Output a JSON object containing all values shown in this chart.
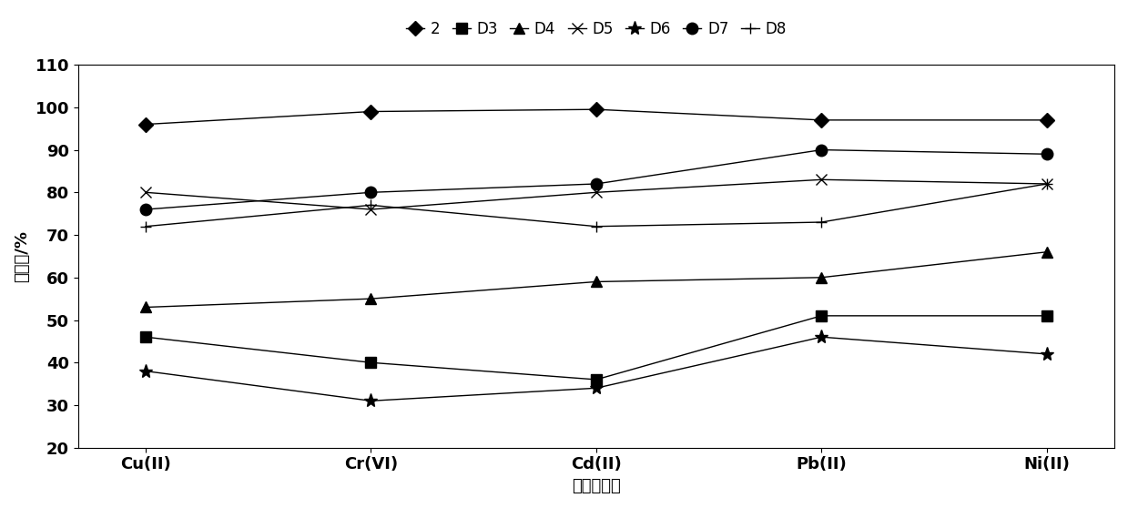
{
  "categories": [
    "Cu(II)",
    "Cr(VI)",
    "Cd(II)",
    "Pb(II)",
    "Ni(II)"
  ],
  "series": [
    {
      "label": "2",
      "marker": "D",
      "values": [
        96,
        99,
        99.5,
        97,
        97
      ],
      "color": "#000000",
      "linestyle": "-",
      "markersize": 8,
      "markerfacecolor": "#000000"
    },
    {
      "label": "D3",
      "marker": "s",
      "values": [
        46,
        40,
        36,
        51,
        51
      ],
      "color": "#000000",
      "linestyle": "-",
      "markersize": 8,
      "markerfacecolor": "#000000"
    },
    {
      "label": "D4",
      "marker": "^",
      "values": [
        53,
        55,
        59,
        60,
        66
      ],
      "color": "#000000",
      "linestyle": "-",
      "markersize": 8,
      "markerfacecolor": "#000000"
    },
    {
      "label": "D5",
      "marker": "x",
      "values": [
        80,
        76,
        80,
        83,
        82
      ],
      "color": "#000000",
      "linestyle": "-",
      "markersize": 9,
      "markerfacecolor": "#000000"
    },
    {
      "label": "D6",
      "marker": "*",
      "values": [
        38,
        31,
        34,
        46,
        42
      ],
      "color": "#000000",
      "linestyle": "-",
      "markersize": 11,
      "markerfacecolor": "#000000"
    },
    {
      "label": "D7",
      "marker": "o",
      "values": [
        76,
        80,
        82,
        90,
        89
      ],
      "color": "#000000",
      "linestyle": "-",
      "markersize": 9,
      "markerfacecolor": "#000000"
    },
    {
      "label": "D8",
      "marker": "+",
      "values": [
        72,
        77,
        72,
        73,
        82
      ],
      "color": "#000000",
      "linestyle": "-",
      "markersize": 9,
      "markerfacecolor": "#000000"
    }
  ],
  "ylabel": "去除率/%",
  "xlabel": "重金属离子",
  "ylim": [
    20,
    110
  ],
  "yticks": [
    20,
    30,
    40,
    50,
    60,
    70,
    80,
    90,
    100,
    110
  ],
  "legend_ncol": 7,
  "figsize": [
    12.39,
    5.58
  ],
  "dpi": 100
}
